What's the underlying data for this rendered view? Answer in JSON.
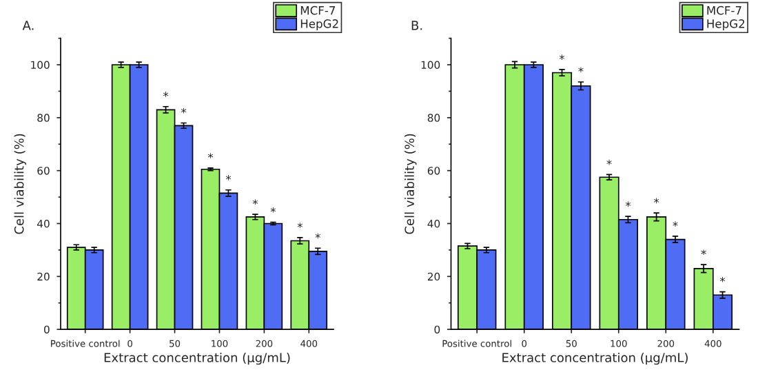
{
  "chart_data": [
    {
      "type": "bar",
      "title": "A.",
      "xlabel": "Extract concentration (μg/mL)",
      "ylabel": "Cell viability (%)",
      "categories": [
        "Positive control",
        "0",
        "50",
        "100",
        "200",
        "400"
      ],
      "ylim": [
        0,
        110
      ],
      "yticks": [
        0,
        20,
        40,
        60,
        80,
        100
      ],
      "legend": "top right",
      "grid": false,
      "series": [
        {
          "name": "MCF-7",
          "color": "#99ee66",
          "values": [
            31,
            100,
            83,
            60.5,
            42.5,
            33.5
          ],
          "errors": [
            1,
            1,
            1.2,
            0.5,
            1,
            1.2
          ],
          "value_labels": [
            null,
            null,
            "*",
            "*",
            "*",
            "*"
          ]
        },
        {
          "name": "HepG2",
          "color": "#4f6cf5",
          "values": [
            30,
            100,
            77,
            51.5,
            40,
            29.5
          ],
          "errors": [
            1,
            1,
            1,
            1.2,
            0.5,
            1.2
          ],
          "value_labels": [
            null,
            null,
            "*",
            "*",
            "*",
            "*"
          ]
        }
      ]
    },
    {
      "type": "bar",
      "title": "B.",
      "xlabel": "Extract concentration (μg/mL)",
      "ylabel": "Cell viability (%)",
      "categories": [
        "Positive control",
        "0",
        "50",
        "100",
        "200",
        "400"
      ],
      "ylim": [
        0,
        110
      ],
      "yticks": [
        0,
        20,
        40,
        60,
        80,
        100
      ],
      "legend": "top right",
      "grid": false,
      "series": [
        {
          "name": "MCF-7",
          "color": "#99ee66",
          "values": [
            31.5,
            100,
            97,
            57.5,
            42.5,
            23
          ],
          "errors": [
            1,
            1.2,
            1.2,
            1,
            1.5,
            1.5
          ],
          "value_labels": [
            null,
            null,
            "*",
            "*",
            "*",
            "*"
          ]
        },
        {
          "name": "HepG2",
          "color": "#4f6cf5",
          "values": [
            30,
            100,
            92,
            41.5,
            34,
            13
          ],
          "errors": [
            1,
            1,
            1.5,
            1.2,
            1.2,
            1.2
          ],
          "value_labels": [
            null,
            null,
            "*",
            "*",
            "*",
            "*"
          ]
        }
      ]
    }
  ]
}
